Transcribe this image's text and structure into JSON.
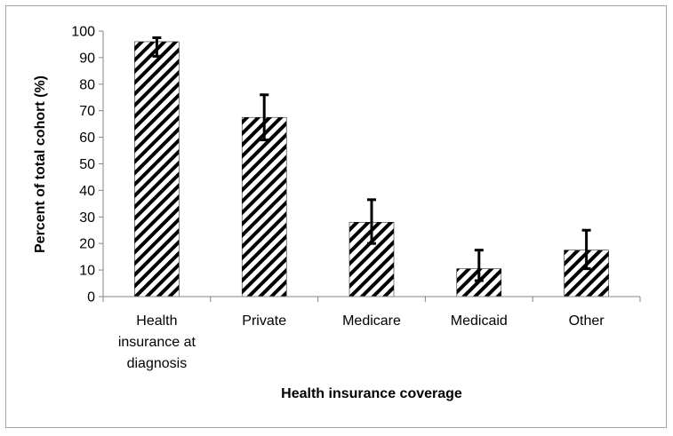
{
  "chart_data": {
    "type": "bar",
    "title": "",
    "xlabel": "Health insurance coverage",
    "ylabel": "Percent of total cohort (%)",
    "ylim": [
      0,
      100
    ],
    "yticks": [
      0,
      10,
      20,
      30,
      40,
      50,
      60,
      70,
      80,
      90,
      100
    ],
    "categories": [
      [
        "Health",
        "insurance at",
        "diagnosis"
      ],
      [
        "Private"
      ],
      [
        "Medicare"
      ],
      [
        "Medicaid"
      ],
      [
        "Other"
      ]
    ],
    "values": [
      96,
      67.5,
      28,
      10.5,
      17.5
    ],
    "error_low": [
      90.5,
      59,
      20,
      6,
      10.5
    ],
    "error_high": [
      97.5,
      76,
      36.5,
      17.5,
      25
    ],
    "grid": false,
    "legend": "none",
    "bar_fill": "diagonal-hatch",
    "colors": {
      "bar_stroke": "#000000",
      "hatch": "#000000",
      "axis": "#868686",
      "frame": "#a6a6a6"
    }
  }
}
